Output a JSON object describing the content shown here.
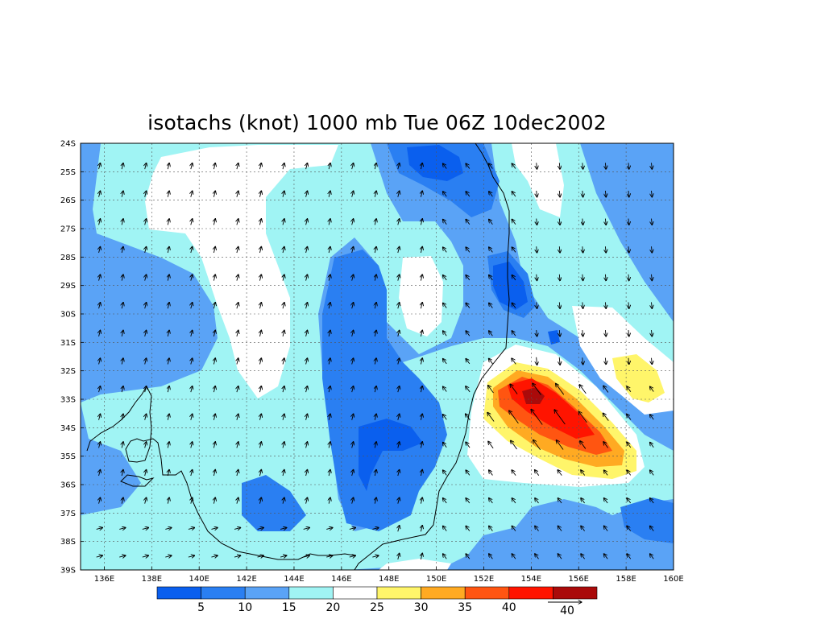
{
  "title": "isotachs (knot) 1000 mb Tue 06Z 10dec2002",
  "map": {
    "lon_range": [
      135,
      160
    ],
    "lat_range": [
      -39,
      -24
    ],
    "lat_labels": [
      "24S",
      "25S",
      "26S",
      "27S",
      "28S",
      "29S",
      "30S",
      "31S",
      "32S",
      "33S",
      "34S",
      "35S",
      "36S",
      "37S",
      "38S",
      "39S"
    ],
    "lon_labels": [
      "136E",
      "138E",
      "140E",
      "142E",
      "144E",
      "146E",
      "148E",
      "150E",
      "152E",
      "154E",
      "156E",
      "158E",
      "160E"
    ]
  },
  "colorbar": {
    "colors": [
      "#0a5fee",
      "#2a7ff2",
      "#5aa3f6",
      "#a0f4f4",
      "#ffffff",
      "#fff56a",
      "#ffaa22",
      "#ff5511",
      "#ff1400",
      "#aa0a0a"
    ],
    "labels": [
      "5",
      "10",
      "15",
      "20",
      "25",
      "30",
      "35",
      "40"
    ]
  },
  "reference_vector": {
    "label": "40"
  }
}
